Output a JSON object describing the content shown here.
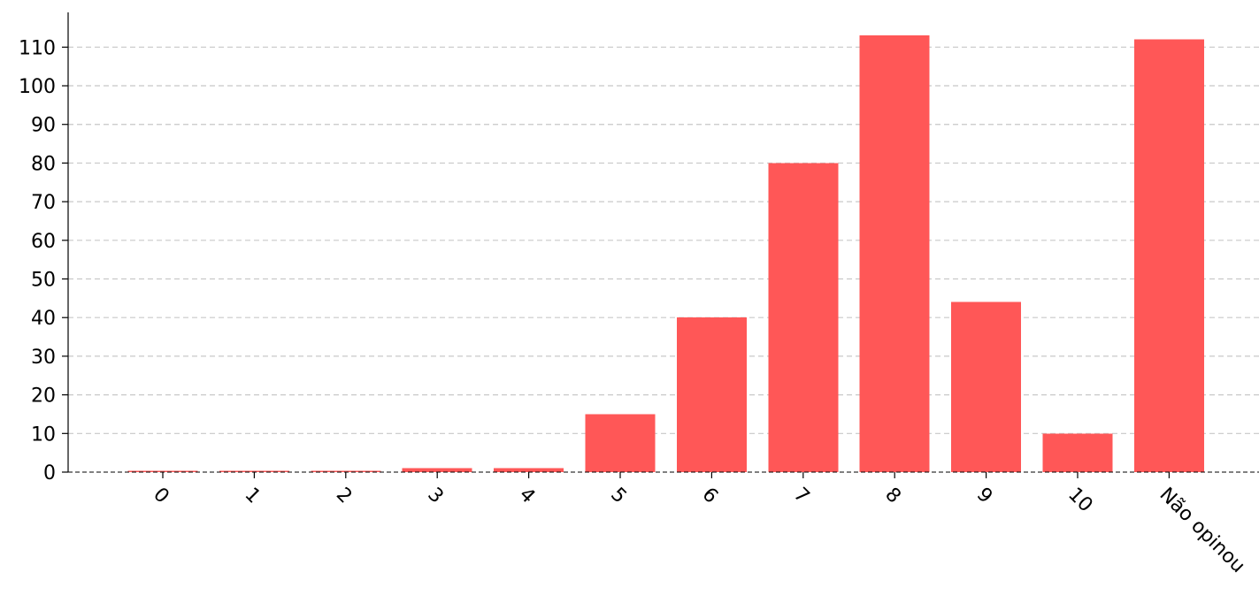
{
  "chart_data": {
    "type": "bar",
    "title": "",
    "xlabel": "",
    "ylabel": "",
    "categories": [
      "0",
      "1",
      "2",
      "3",
      "4",
      "5",
      "6",
      "7",
      "8",
      "9",
      "10",
      "Não opinou"
    ],
    "values": [
      0,
      0,
      0,
      1,
      1,
      15,
      40,
      80,
      113,
      44,
      10,
      112
    ],
    "ylim": [
      0,
      119
    ],
    "yticks": [
      "0",
      "10",
      "20",
      "30",
      "40",
      "50",
      "60",
      "70",
      "80",
      "90",
      "100",
      "110"
    ],
    "grid": "horizontal dashed",
    "bar_color": "#ff5757",
    "x_tick_rotation_deg": -45
  }
}
